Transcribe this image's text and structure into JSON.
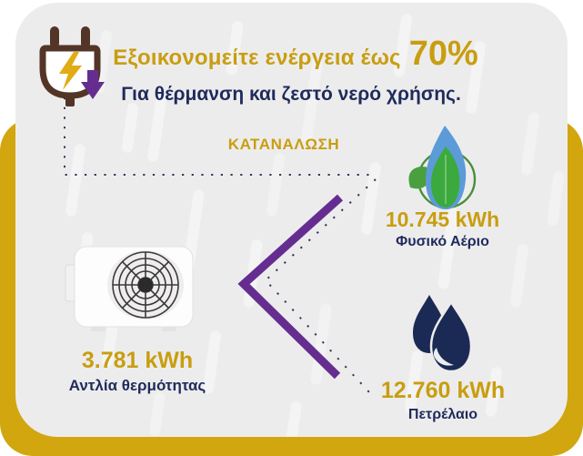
{
  "header": {
    "title_main": "Εξοικονομείτε ενέργεια έως",
    "title_percent": "70%",
    "subtitle": "Για θέρμανση και ζεστό νερό χρήσης.",
    "consumption_label": "ΚΑΤΑΝΑΛΩΣΗ"
  },
  "items": {
    "heat_pump": {
      "value": "3.781 kWh",
      "label": "Αντλία θερμότητας"
    },
    "natural_gas": {
      "value": "10.745 kWh",
      "label": "Φυσικό Αέριο"
    },
    "oil": {
      "value": "12.760 kWh",
      "label": "Πετρέλαιο"
    }
  },
  "icons": [
    "plug-energy-icon",
    "lightning-icon",
    "arrow-down-icon",
    "natural-gas-flame-icon",
    "leaf-icon",
    "oil-drops-icon",
    "heat-pump-image",
    "comparison-chevron",
    "dotted-connector-line"
  ],
  "colors": {
    "gold_text": "#C89E10",
    "gold_band": "#D2A60F",
    "navy": "#1F2B5B",
    "purple": "#662D91",
    "plug_brown": "#533527",
    "flame_blue": "#5B9BD8",
    "leaf_green": "#3CA93F",
    "circle_green": "#4A8F3C",
    "card_background": "#EDECED"
  }
}
